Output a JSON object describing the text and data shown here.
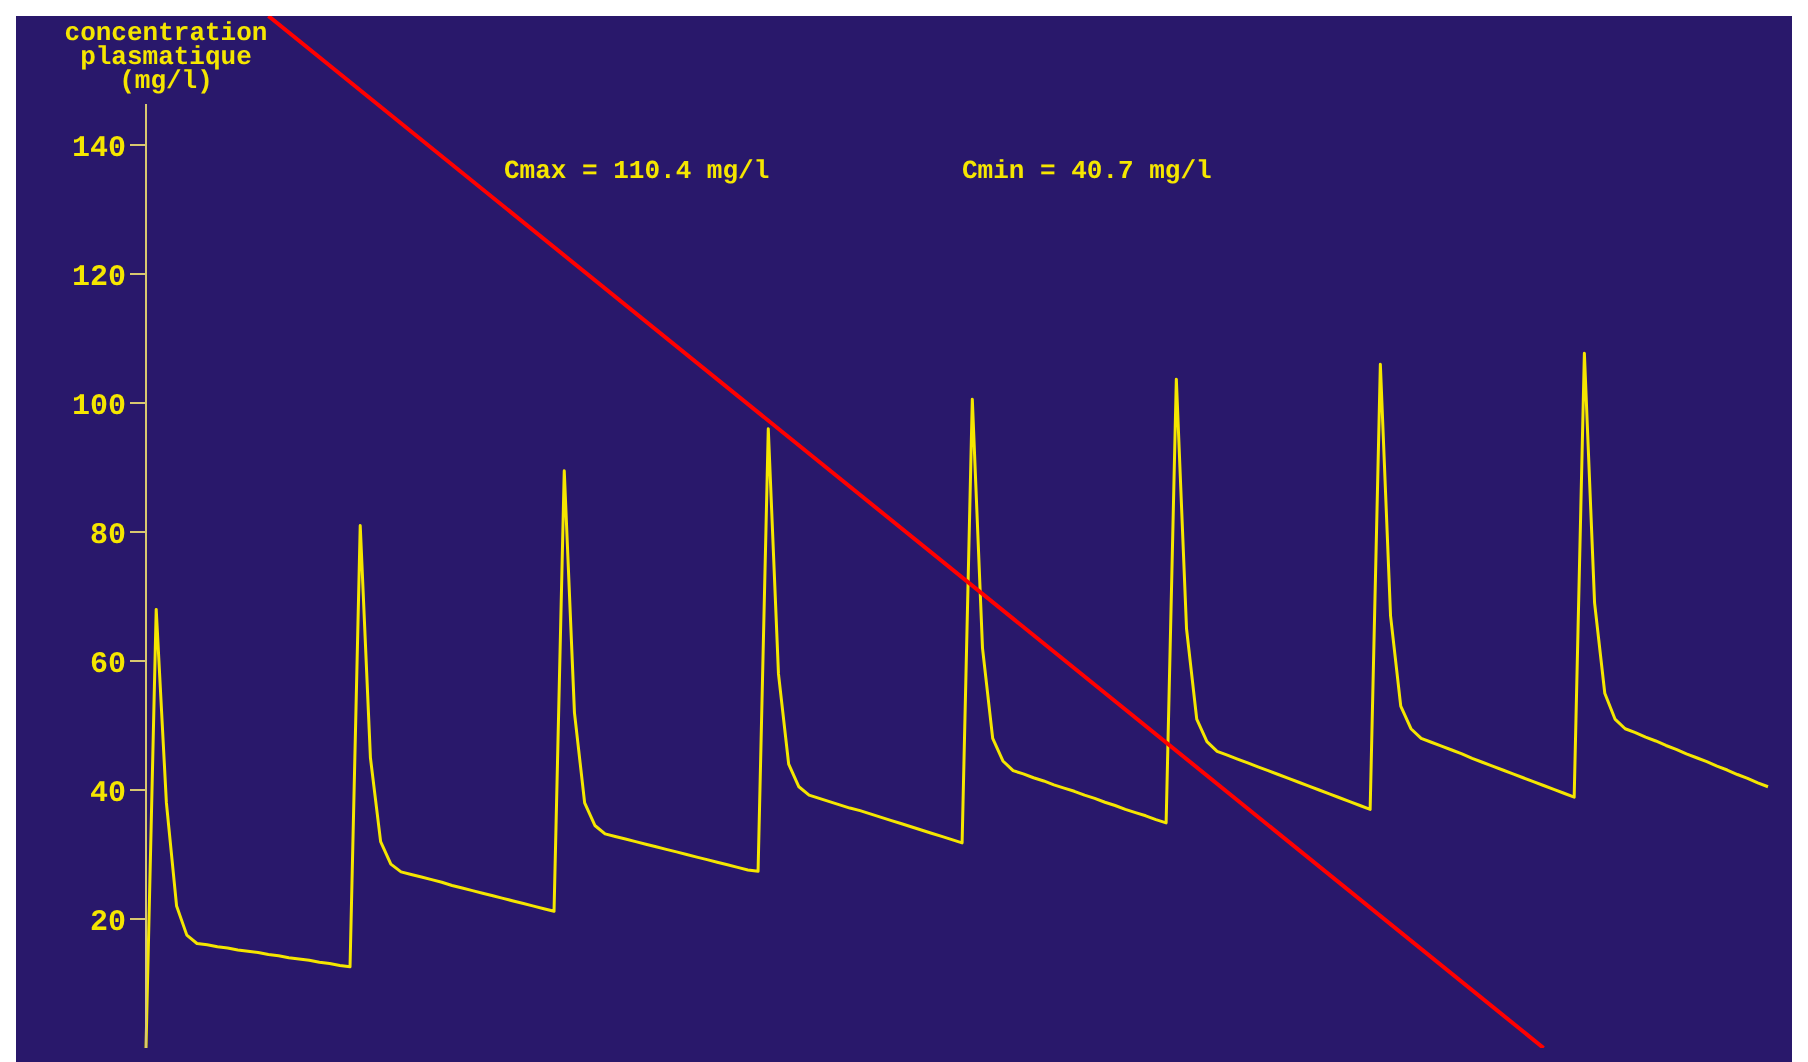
{
  "chart_data": {
    "type": "line",
    "ylabel": "concentration\nplasmatique\n(mg/l)",
    "annotations": [
      "Cmax = 110.4 mg/l",
      "Cmin = 40.7 mg/l"
    ],
    "tick_labels": "y",
    "grid": false,
    "ylim": [
      0,
      160
    ],
    "yticks": [
      20,
      40,
      60,
      80,
      100,
      120,
      140
    ],
    "categories": [
      null,
      null,
      null,
      null,
      null,
      null,
      null,
      null,
      null,
      null,
      null,
      null,
      null,
      null,
      null,
      null,
      null,
      null,
      null,
      null,
      null,
      null,
      null,
      null,
      null,
      null,
      null,
      null,
      null,
      null,
      null,
      null,
      null,
      null,
      null,
      null,
      null,
      null,
      null,
      null,
      null,
      null,
      null,
      null,
      null,
      null,
      null,
      null,
      null,
      null,
      null,
      null,
      null,
      null,
      null,
      null,
      null,
      null,
      null,
      null,
      null,
      null,
      null,
      null,
      null,
      null,
      null,
      null,
      null,
      null,
      null,
      null,
      null,
      null,
      null,
      null,
      null,
      null,
      null,
      null,
      null,
      null,
      null,
      null,
      null,
      null,
      null,
      null,
      null,
      null,
      null,
      null,
      null,
      null,
      null,
      null,
      null,
      null,
      null,
      null,
      null,
      null,
      null,
      null,
      null,
      null,
      null,
      null,
      null,
      null,
      null,
      null,
      null,
      null,
      null,
      null,
      null,
      null,
      null,
      null,
      null,
      null,
      null,
      null,
      null,
      null,
      null,
      null,
      null,
      null,
      null,
      null,
      null,
      null,
      null,
      null,
      null,
      null,
      null,
      null,
      null,
      null,
      null,
      null,
      null,
      null,
      null,
      null,
      null,
      null,
      null,
      null,
      null,
      null,
      null,
      null,
      null,
      null,
      null,
      null
    ],
    "series": [
      {
        "color": "#f5e600",
        "values": [
          0,
          68,
          38,
          22,
          17.5,
          16.2,
          16.0,
          15.7,
          15.5,
          15.2,
          15.0,
          14.8,
          14.5,
          14.3,
          14.0,
          13.8,
          13.6,
          13.3,
          13.1,
          12.8,
          12.6,
          81,
          45,
          32,
          28.5,
          27.3,
          26.9,
          26.5,
          26.1,
          25.7,
          25.2,
          24.8,
          24.4,
          24.0,
          23.6,
          23.2,
          22.8,
          22.4,
          22.0,
          21.6,
          21.2,
          89.5,
          52,
          38,
          34.5,
          33.2,
          32.8,
          32.4,
          32.0,
          31.6,
          31.2,
          30.8,
          30.4,
          30.0,
          29.6,
          29.2,
          28.8,
          28.4,
          28.0,
          27.6,
          27.4,
          96,
          58,
          44,
          40.5,
          39.2,
          38.7,
          38.2,
          37.7,
          37.2,
          36.8,
          36.3,
          35.8,
          35.3,
          34.8,
          34.3,
          33.8,
          33.3,
          32.8,
          32.3,
          31.8,
          100.6,
          62,
          48,
          44.5,
          43,
          42.5,
          41.9,
          41.4,
          40.8,
          40.3,
          39.8,
          39.2,
          38.7,
          38.1,
          37.6,
          37.0,
          36.5,
          36.0,
          35.4,
          34.9,
          103.7,
          65,
          51,
          47.5,
          46,
          45.4,
          44.8,
          44.2,
          43.6,
          43.0,
          42.4,
          41.8,
          41.2,
          40.6,
          40.0,
          39.4,
          38.8,
          38.2,
          37.6,
          37,
          106,
          67,
          53,
          49.5,
          48,
          47.4,
          46.8,
          46.2,
          45.6,
          44.9,
          44.3,
          43.7,
          43.1,
          42.5,
          41.9,
          41.3,
          40.7,
          40.1,
          39.5,
          38.9,
          107.7,
          69,
          55,
          51,
          49.5,
          48.9,
          48.2,
          47.6,
          46.9,
          46.3,
          45.6,
          45.0,
          44.4,
          43.7,
          43.1,
          42.4,
          41.8,
          41.1,
          40.5
        ]
      },
      {
        "color": "#ff0000",
        "values": [
          null,
          null,
          null,
          null,
          null,
          null,
          null,
          null,
          null,
          null,
          null,
          null,
          160,
          null,
          null,
          null,
          null,
          null,
          null,
          null,
          null,
          null,
          null,
          null,
          null,
          null,
          null,
          null,
          null,
          null,
          null,
          null,
          null,
          null,
          null,
          null,
          null,
          null,
          null,
          null,
          null,
          null,
          null,
          null,
          null,
          null,
          null,
          null,
          null,
          null,
          null,
          null,
          null,
          null,
          null,
          null,
          null,
          null,
          null,
          null,
          null,
          null,
          null,
          null,
          null,
          null,
          null,
          null,
          null,
          null,
          null,
          null,
          null,
          null,
          null,
          null,
          null,
          null,
          null,
          null,
          null,
          null,
          null,
          null,
          null,
          null,
          null,
          null,
          null,
          null,
          null,
          null,
          null,
          null,
          null,
          null,
          null,
          null,
          null,
          null,
          null,
          null,
          null,
          null,
          null,
          null,
          null,
          null,
          null,
          null,
          null,
          null,
          null,
          null,
          null,
          null,
          null,
          null,
          null,
          null,
          null,
          null,
          null,
          null,
          null,
          null,
          null,
          null,
          null,
          null,
          null,
          null,
          null,
          null,
          null,
          null,
          null,
          0,
          null,
          null,
          null,
          null,
          null,
          null,
          null,
          null,
          null,
          null,
          null,
          null,
          null,
          null,
          null,
          null,
          null,
          null,
          null,
          null,
          null,
          null
        ]
      }
    ]
  }
}
